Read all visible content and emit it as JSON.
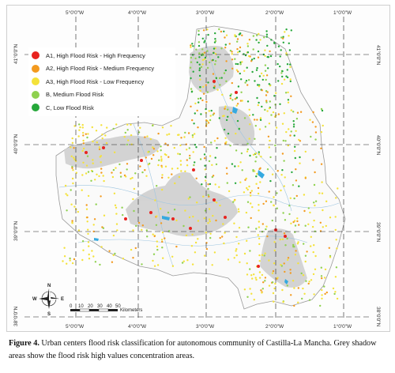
{
  "map": {
    "top_longitudes": [
      "5°0'0\"W",
      "4°0'0\"W",
      "3°0'0\"W",
      "2°0'0\"W",
      "1°0'0\"W"
    ],
    "bottom_longitudes": [
      "5°0'0\"W",
      "4°0'0\"W",
      "3°0'0\"W",
      "2°0'0\"W",
      "1°0'0\"W"
    ],
    "left_latitudes": [
      "41°0'0\"N",
      "40°0'0\"N",
      "39°0'0\"N",
      "38°0'0\"N"
    ],
    "right_latitudes": [
      "41°0'0\"N",
      "40°0'0\"N",
      "39°0'0\"N",
      "38°0'0\"N"
    ],
    "colors": {
      "a1": "#e8231f",
      "a2": "#f39a1f",
      "a3": "#f4e23a",
      "b": "#8fd14f",
      "c": "#26a83a",
      "shadow": "#c9c9c9",
      "water": "#35a9e0"
    }
  },
  "legend": {
    "items": [
      {
        "label": "A1, High Flood Risk - High Frequency",
        "color": "#e8231f"
      },
      {
        "label": "A2, High Flood Risk - Medium Frequency",
        "color": "#f39a1f"
      },
      {
        "label": "A3, High Flood Risk - Low Frequency",
        "color": "#f4e23a"
      },
      {
        "label": "B, Medium Flood Risk",
        "color": "#8fd14f"
      },
      {
        "label": "C, Low Flood Risk",
        "color": "#26a83a"
      }
    ]
  },
  "compass": {
    "n": "N",
    "s": "S",
    "e": "E",
    "w": "W"
  },
  "scale_bar": {
    "ticks": [
      "0",
      "10",
      "20",
      "30",
      "40",
      "50"
    ],
    "unit": "Kilometers"
  },
  "caption": {
    "label": "Figure 4.",
    "text": "Urban centers flood risk classification for autonomous community of Castilla-La Mancha. Grey shadow areas show the flood risk high values concentration areas."
  }
}
